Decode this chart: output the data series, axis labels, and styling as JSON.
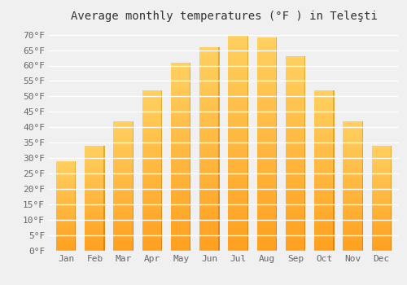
{
  "title": "Average monthly temperatures (°F ) in Teleşti",
  "months": [
    "Jan",
    "Feb",
    "Mar",
    "Apr",
    "May",
    "Jun",
    "Jul",
    "Aug",
    "Sep",
    "Oct",
    "Nov",
    "Dec"
  ],
  "values": [
    29,
    34,
    42,
    52,
    61,
    66,
    70,
    69,
    63,
    52,
    42,
    34
  ],
  "bar_color_light": "#FFD060",
  "bar_color_dark": "#FFA020",
  "bar_color_side": "#E08010",
  "background_color": "#F0F0F0",
  "grid_color": "#FFFFFF",
  "yticks": [
    0,
    5,
    10,
    15,
    20,
    25,
    30,
    35,
    40,
    45,
    50,
    55,
    60,
    65,
    70
  ],
  "ytick_labels": [
    "0°F",
    "5°F",
    "10°F",
    "15°F",
    "20°F",
    "25°F",
    "30°F",
    "35°F",
    "40°F",
    "45°F",
    "50°F",
    "55°F",
    "60°F",
    "65°F",
    "70°F"
  ],
  "ylim": [
    0,
    72
  ],
  "title_fontsize": 10,
  "tick_fontsize": 8,
  "font_family": "monospace"
}
